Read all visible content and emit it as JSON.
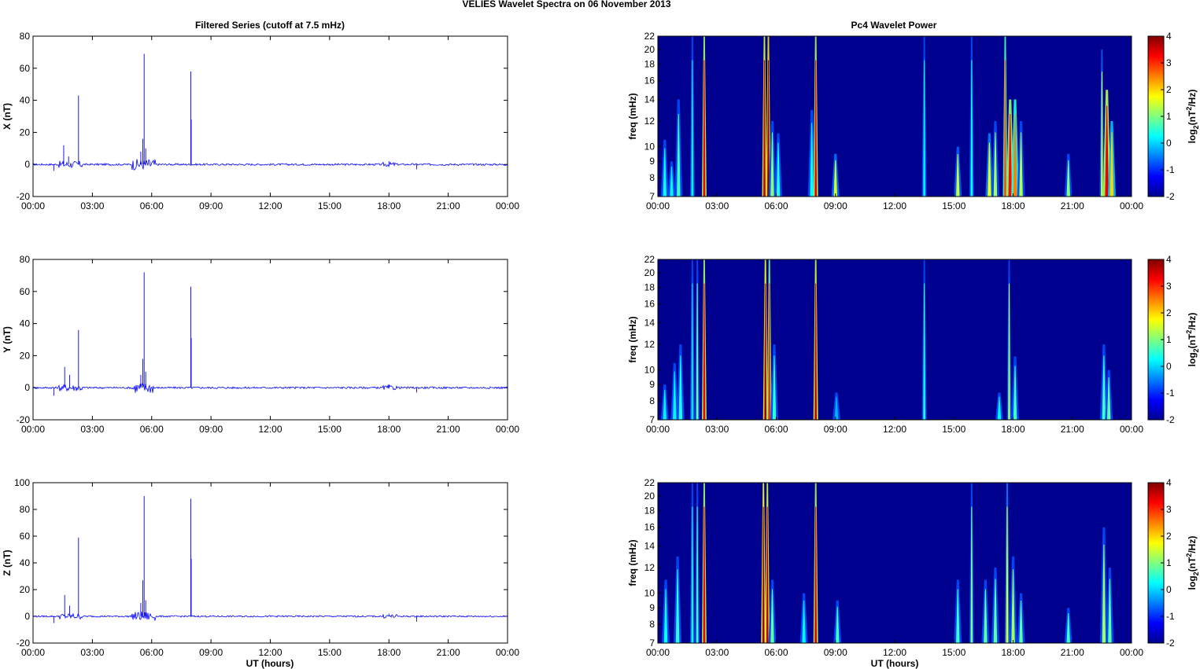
{
  "main_title": "VELIES Wavelet Spectra on 06 November  2013",
  "left_title": "Filtered Series (cutoff at 7.5 mHz)",
  "right_title": "Pc4 Wavelet Power",
  "xlabel": "UT (hours)",
  "freq_label": "freq (mHz)",
  "colorbar_label_pre": "log",
  "colorbar_label_sub": "2",
  "colorbar_label_mid": "(nT",
  "colorbar_label_sup": "2",
  "colorbar_label_post": "/Hz)",
  "xticks": [
    "00:00",
    "03:00",
    "06:00",
    "09:00",
    "12:00",
    "15:00",
    "18:00",
    "21:00",
    "00:00"
  ],
  "freq_ticks": [
    "7",
    "8",
    "9",
    "10",
    "12",
    "14",
    "16",
    "18",
    "20",
    "22"
  ],
  "colorbar_ticks": [
    "4",
    "3",
    "2",
    "1",
    "0",
    "-1",
    "-2"
  ],
  "colors": {
    "trace": "#0000ff",
    "background_power": "#00008f"
  },
  "chart_data": [
    {
      "type": "line",
      "component": "X",
      "ylabel": "X (nT)",
      "yticks": [
        "80",
        "60",
        "40",
        "20",
        "0",
        "-20"
      ],
      "ylim": [
        -20,
        80
      ],
      "x_unit": "UT hours",
      "spikes": [
        {
          "t": 1.05,
          "v": -4
        },
        {
          "t": 1.55,
          "v": 12
        },
        {
          "t": 1.8,
          "v": 5
        },
        {
          "t": 2.3,
          "v": 43
        },
        {
          "t": 5.45,
          "v": 8
        },
        {
          "t": 5.55,
          "v": 16
        },
        {
          "t": 5.62,
          "v": 69
        },
        {
          "t": 5.7,
          "v": 10
        },
        {
          "t": 7.98,
          "v": 58
        },
        {
          "t": 8.0,
          "v": 28
        },
        {
          "t": 18.0,
          "v": 2
        },
        {
          "t": 19.4,
          "v": -3
        }
      ]
    },
    {
      "type": "line",
      "component": "Y",
      "ylabel": "Y (nT)",
      "yticks": [
        "80",
        "60",
        "40",
        "20",
        "0",
        "-20"
      ],
      "ylim": [
        -20,
        80
      ],
      "x_unit": "UT hours",
      "spikes": [
        {
          "t": 1.05,
          "v": -5
        },
        {
          "t": 1.6,
          "v": 13
        },
        {
          "t": 1.85,
          "v": 8
        },
        {
          "t": 2.3,
          "v": 36
        },
        {
          "t": 5.45,
          "v": 8
        },
        {
          "t": 5.55,
          "v": 18
        },
        {
          "t": 5.62,
          "v": 72
        },
        {
          "t": 5.7,
          "v": 10
        },
        {
          "t": 7.98,
          "v": 63
        },
        {
          "t": 8.0,
          "v": 31
        },
        {
          "t": 18.0,
          "v": 2
        },
        {
          "t": 19.4,
          "v": -3
        }
      ]
    },
    {
      "type": "line",
      "component": "Z",
      "ylabel": "Z (nT)",
      "yticks": [
        "100",
        "80",
        "60",
        "40",
        "20",
        "0",
        "-20"
      ],
      "ylim": [
        -20,
        100
      ],
      "x_unit": "UT hours",
      "spikes": [
        {
          "t": 1.05,
          "v": -5
        },
        {
          "t": 1.6,
          "v": 16
        },
        {
          "t": 1.85,
          "v": 8
        },
        {
          "t": 2.3,
          "v": 59
        },
        {
          "t": 5.45,
          "v": 10
        },
        {
          "t": 5.55,
          "v": 27
        },
        {
          "t": 5.62,
          "v": 90
        },
        {
          "t": 5.7,
          "v": 12
        },
        {
          "t": 7.98,
          "v": 88
        },
        {
          "t": 8.0,
          "v": 43
        },
        {
          "t": 18.0,
          "v": 2
        },
        {
          "t": 19.4,
          "v": -4
        }
      ]
    },
    {
      "type": "heatmap",
      "component": "X",
      "clim": [
        -2,
        4
      ],
      "freq_range_mHz": [
        7,
        22
      ],
      "bursts": [
        {
          "t": 0.35,
          "fmax": 10.5,
          "p": 0.3
        },
        {
          "t": 0.7,
          "fmax": 9,
          "p": 0.2
        },
        {
          "t": 1.05,
          "fmax": 14,
          "p": 0.6
        },
        {
          "t": 1.75,
          "fmax": 22,
          "p": 0.2
        },
        {
          "t": 2.35,
          "fmax": 22,
          "p": 3.3
        },
        {
          "t": 5.4,
          "fmax": 22,
          "p": 3.6
        },
        {
          "t": 5.6,
          "fmax": 22,
          "p": 4.0
        },
        {
          "t": 5.8,
          "fmax": 12,
          "p": 1.0
        },
        {
          "t": 6.1,
          "fmax": 11,
          "p": 0.4
        },
        {
          "t": 7.8,
          "fmax": 13,
          "p": 0.3
        },
        {
          "t": 8.0,
          "fmax": 22,
          "p": 3.4
        },
        {
          "t": 9.0,
          "fmax": 9.5,
          "p": 1.5
        },
        {
          "t": 13.5,
          "fmax": 22,
          "p": 0.2
        },
        {
          "t": 15.2,
          "fmax": 10,
          "p": 1.4
        },
        {
          "t": 15.9,
          "fmax": 22,
          "p": 0.3
        },
        {
          "t": 16.8,
          "fmax": 11,
          "p": 1.6
        },
        {
          "t": 17.1,
          "fmax": 12,
          "p": 1.2
        },
        {
          "t": 17.6,
          "fmax": 22,
          "p": 2.8
        },
        {
          "t": 17.85,
          "fmax": 14,
          "p": 3.2
        },
        {
          "t": 18.1,
          "fmax": 14,
          "p": 2.5
        },
        {
          "t": 18.4,
          "fmax": 12,
          "p": 1.3
        },
        {
          "t": 20.8,
          "fmax": 9.5,
          "p": 1.0
        },
        {
          "t": 22.5,
          "fmax": 20,
          "p": 1.4
        },
        {
          "t": 22.75,
          "fmax": 15,
          "p": 3.4
        },
        {
          "t": 23.0,
          "fmax": 12,
          "p": 2.0
        }
      ]
    },
    {
      "type": "heatmap",
      "component": "Y",
      "clim": [
        -2,
        4
      ],
      "freq_range_mHz": [
        7,
        22
      ],
      "bursts": [
        {
          "t": 0.35,
          "fmax": 9,
          "p": 0.2
        },
        {
          "t": 0.85,
          "fmax": 10.5,
          "p": 0.2
        },
        {
          "t": 1.15,
          "fmax": 12,
          "p": 0.4
        },
        {
          "t": 1.75,
          "fmax": 22,
          "p": 0.1
        },
        {
          "t": 2.0,
          "fmax": 22,
          "p": 0.9
        },
        {
          "t": 2.35,
          "fmax": 22,
          "p": 3.3
        },
        {
          "t": 5.45,
          "fmax": 22,
          "p": 3.8
        },
        {
          "t": 5.65,
          "fmax": 22,
          "p": 3.0
        },
        {
          "t": 5.9,
          "fmax": 12,
          "p": 0.5
        },
        {
          "t": 8.0,
          "fmax": 22,
          "p": 3.6
        },
        {
          "t": 9.05,
          "fmax": 8.5,
          "p": -0.2
        },
        {
          "t": 13.5,
          "fmax": 22,
          "p": 0.4
        },
        {
          "t": 17.3,
          "fmax": 8.5,
          "p": 0.2
        },
        {
          "t": 17.8,
          "fmax": 22,
          "p": 1.2
        },
        {
          "t": 18.1,
          "fmax": 11,
          "p": 0.6
        },
        {
          "t": 22.6,
          "fmax": 12,
          "p": 0.6
        },
        {
          "t": 22.85,
          "fmax": 10,
          "p": 0.8
        }
      ]
    },
    {
      "type": "heatmap",
      "component": "Z",
      "clim": [
        -2,
        4
      ],
      "freq_range_mHz": [
        7,
        22
      ],
      "bursts": [
        {
          "t": 0.4,
          "fmax": 11,
          "p": 0.3
        },
        {
          "t": 1.0,
          "fmax": 13,
          "p": 0.5
        },
        {
          "t": 1.75,
          "fmax": 22,
          "p": 0.3
        },
        {
          "t": 2.0,
          "fmax": 22,
          "p": 0.6
        },
        {
          "t": 2.35,
          "fmax": 22,
          "p": 3.3
        },
        {
          "t": 5.35,
          "fmax": 22,
          "p": 3.8
        },
        {
          "t": 5.55,
          "fmax": 22,
          "p": 3.6
        },
        {
          "t": 5.8,
          "fmax": 11,
          "p": 0.8
        },
        {
          "t": 7.4,
          "fmax": 10,
          "p": 0.2
        },
        {
          "t": 8.0,
          "fmax": 22,
          "p": 3.4
        },
        {
          "t": 9.1,
          "fmax": 9.5,
          "p": 0.6
        },
        {
          "t": 15.2,
          "fmax": 11,
          "p": 0.6
        },
        {
          "t": 15.9,
          "fmax": 22,
          "p": 1.0
        },
        {
          "t": 16.6,
          "fmax": 11,
          "p": 0.8
        },
        {
          "t": 17.1,
          "fmax": 12,
          "p": 0.8
        },
        {
          "t": 17.7,
          "fmax": 22,
          "p": 1.6
        },
        {
          "t": 18.0,
          "fmax": 13,
          "p": 1.2
        },
        {
          "t": 18.4,
          "fmax": 10,
          "p": 0.8
        },
        {
          "t": 20.8,
          "fmax": 9,
          "p": 0.6
        },
        {
          "t": 22.6,
          "fmax": 16,
          "p": 1.2
        },
        {
          "t": 22.9,
          "fmax": 12,
          "p": 0.8
        }
      ]
    }
  ]
}
